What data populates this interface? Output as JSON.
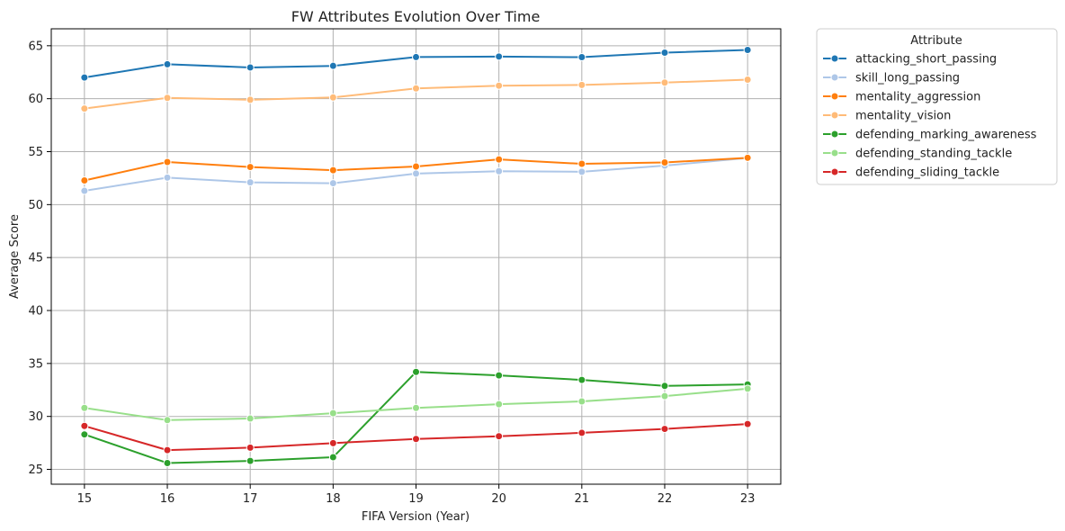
{
  "chart_data": {
    "type": "line",
    "title": "FW Attributes Evolution Over Time",
    "xlabel": "FIFA Version (Year)",
    "ylabel": "Average Score",
    "x": [
      15,
      16,
      17,
      18,
      19,
      20,
      21,
      22,
      23
    ],
    "x_ticks": [
      "15",
      "16",
      "17",
      "18",
      "19",
      "20",
      "21",
      "22",
      "23"
    ],
    "xlim": [
      14.6,
      23.4
    ],
    "ylim": [
      23.6,
      66.6
    ],
    "y_ticks": [
      25,
      30,
      35,
      40,
      45,
      50,
      55,
      60,
      65
    ],
    "grid": true,
    "legend": {
      "title": "Attribute",
      "placement": "outside-top-right"
    },
    "series": [
      {
        "name": "attacking_short_passing",
        "color": "#1f77b4",
        "values": [
          62.0,
          63.25,
          62.95,
          63.1,
          63.93,
          63.98,
          63.92,
          64.35,
          64.6
        ]
      },
      {
        "name": "skill_long_passing",
        "color": "#aec7e8",
        "values": [
          51.3,
          52.55,
          52.1,
          52.02,
          52.93,
          53.15,
          53.1,
          53.68,
          54.4
        ]
      },
      {
        "name": "mentality_aggression",
        "color": "#ff7f0e",
        "values": [
          52.28,
          54.02,
          53.55,
          53.25,
          53.6,
          54.27,
          53.85,
          53.98,
          54.42
        ]
      },
      {
        "name": "mentality_vision",
        "color": "#ffbb78",
        "values": [
          59.07,
          60.08,
          59.9,
          60.12,
          60.97,
          61.23,
          61.3,
          61.52,
          61.8
        ]
      },
      {
        "name": "defending_marking_awareness",
        "color": "#2ca02c",
        "values": [
          28.3,
          25.6,
          25.8,
          26.15,
          34.2,
          33.87,
          33.45,
          32.88,
          33.02
        ]
      },
      {
        "name": "defending_standing_tackle",
        "color": "#98df8a",
        "values": [
          30.8,
          29.65,
          29.8,
          30.3,
          30.8,
          31.15,
          31.42,
          31.92,
          32.62
        ]
      },
      {
        "name": "defending_sliding_tackle",
        "color": "#d62728",
        "values": [
          29.1,
          26.82,
          27.05,
          27.48,
          27.87,
          28.13,
          28.45,
          28.82,
          29.28
        ]
      }
    ]
  }
}
